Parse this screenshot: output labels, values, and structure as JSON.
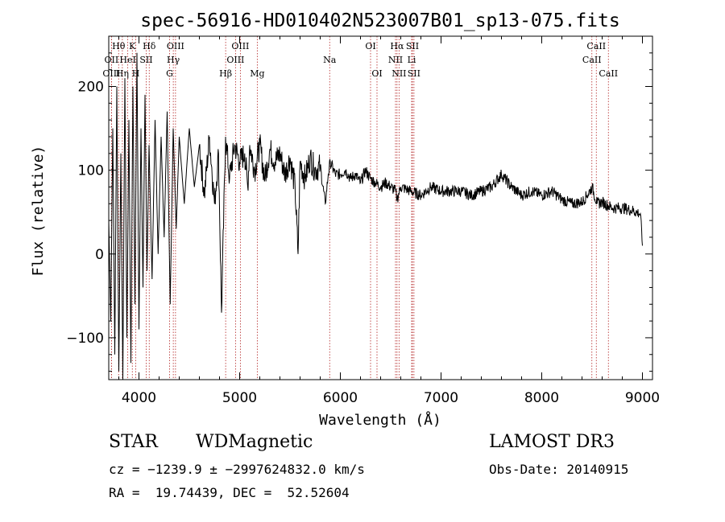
{
  "chart_data": {
    "type": "line",
    "title": "spec-56916-HD010402N523007B01_sp13-075.fits",
    "xlabel": "Wavelength (Å)",
    "ylabel": "Flux (relative)",
    "xlim": [
      3700,
      9100
    ],
    "ylim": [
      -150,
      260
    ],
    "xticks": [
      4000,
      5000,
      6000,
      7000,
      8000,
      9000
    ],
    "xtick_labels": [
      "4000",
      "5000",
      "6000",
      "7000",
      "8000",
      "9000"
    ],
    "yticks": [
      -100,
      0,
      100,
      200
    ],
    "ytick_labels": [
      "−100",
      "0",
      "100",
      "200"
    ],
    "line_color": "#000000",
    "marker_color": "#b22222",
    "series": [
      {
        "name": "flux",
        "x": [
          3700,
          3720,
          3740,
          3760,
          3780,
          3800,
          3820,
          3840,
          3860,
          3880,
          3900,
          3920,
          3940,
          3960,
          3980,
          4000,
          4020,
          4040,
          4060,
          4080,
          4100,
          4130,
          4160,
          4190,
          4220,
          4250,
          4280,
          4310,
          4340,
          4370,
          4400,
          4450,
          4500,
          4550,
          4600,
          4650,
          4700,
          4750,
          4790,
          4820,
          4860,
          4900,
          4950,
          5000,
          5050,
          5080,
          5100,
          5150,
          5200,
          5250,
          5300,
          5350,
          5400,
          5450,
          5500,
          5550,
          5580,
          5600,
          5650,
          5700,
          5750,
          5800,
          5850,
          5880,
          5900,
          5950,
          6000,
          6050,
          6100,
          6150,
          6200,
          6250,
          6300,
          6350,
          6400,
          6450,
          6500,
          6550,
          6563,
          6600,
          6700,
          6800,
          6900,
          7000,
          7100,
          7200,
          7300,
          7400,
          7500,
          7600,
          7700,
          7800,
          7900,
          8000,
          8100,
          8200,
          8300,
          8400,
          8450,
          8500,
          8550,
          8600,
          8700,
          8800,
          8900,
          8980,
          9000
        ],
        "y": [
          40,
          -80,
          150,
          -120,
          200,
          -140,
          120,
          -150,
          210,
          -100,
          160,
          -130,
          200,
          -60,
          240,
          -90,
          150,
          -40,
          190,
          -20,
          130,
          -30,
          160,
          0,
          140,
          20,
          170,
          -60,
          150,
          30,
          140,
          60,
          150,
          80,
          130,
          70,
          140,
          60,
          120,
          -70,
          140,
          90,
          130,
          110,
          120,
          80,
          130,
          100,
          130,
          90,
          125,
          110,
          120,
          95,
          115,
          80,
          0,
          110,
          90,
          115,
          100,
          105,
          60,
          95,
          110,
          95,
          95,
          100,
          90,
          95,
          85,
          100,
          90,
          85,
          80,
          85,
          80,
          75,
          65,
          80,
          75,
          70,
          80,
          75,
          75,
          75,
          70,
          75,
          80,
          95,
          80,
          70,
          75,
          70,
          75,
          65,
          60,
          62,
          70,
          80,
          60,
          62,
          55,
          55,
          52,
          48,
          10
        ]
      }
    ],
    "lines": [
      {
        "label": "Hθ",
        "x": 3798,
        "row": 1
      },
      {
        "label": "OII",
        "x": 3727,
        "row": 2
      },
      {
        "label": "HeI",
        "x": 3889,
        "row": 2
      },
      {
        "label": "OIII",
        "x": 3727,
        "row": 3
      },
      {
        "label": "Hη",
        "x": 3835,
        "row": 3
      },
      {
        "label": "K",
        "x": 3934,
        "row": 1
      },
      {
        "label": "H",
        "x": 3968,
        "row": 3
      },
      {
        "label": "Hδ",
        "x": 4102,
        "row": 1
      },
      {
        "label": "SII",
        "x": 4072,
        "row": 2
      },
      {
        "label": "OIII",
        "x": 4363,
        "row": 1
      },
      {
        "label": "Hγ",
        "x": 4341,
        "row": 2
      },
      {
        "label": "G",
        "x": 4304,
        "row": 3
      },
      {
        "label": "Hβ",
        "x": 4861,
        "row": 3
      },
      {
        "label": "OIII",
        "x": 5007,
        "row": 1
      },
      {
        "label": "OIII",
        "x": 4959,
        "row": 2
      },
      {
        "label": "Mg",
        "x": 5175,
        "row": 3
      },
      {
        "label": "Na",
        "x": 5894,
        "row": 2
      },
      {
        "label": "OI",
        "x": 6300,
        "row": 1
      },
      {
        "label": "OI",
        "x": 6364,
        "row": 3
      },
      {
        "label": "Hα",
        "x": 6563,
        "row": 1
      },
      {
        "label": "NII",
        "x": 6548,
        "row": 2
      },
      {
        "label": "NII",
        "x": 6583,
        "row": 3
      },
      {
        "label": "SII",
        "x": 6716,
        "row": 1
      },
      {
        "label": "Li",
        "x": 6708,
        "row": 2
      },
      {
        "label": "SII",
        "x": 6731,
        "row": 3
      },
      {
        "label": "CaII",
        "x": 8542,
        "row": 1
      },
      {
        "label": "CaII",
        "x": 8498,
        "row": 2
      },
      {
        "label": "CaII",
        "x": 8662,
        "row": 3
      }
    ]
  },
  "info": {
    "class": "STAR",
    "subclass": "WDMagnetic",
    "survey": "LAMOST DR3",
    "cz": "cz = −1239.9 ± −2997624832.0 km/s",
    "obs_date": "Obs-Date: 20140915",
    "radec": "RA =  19.74439, DEC =  52.52604"
  }
}
